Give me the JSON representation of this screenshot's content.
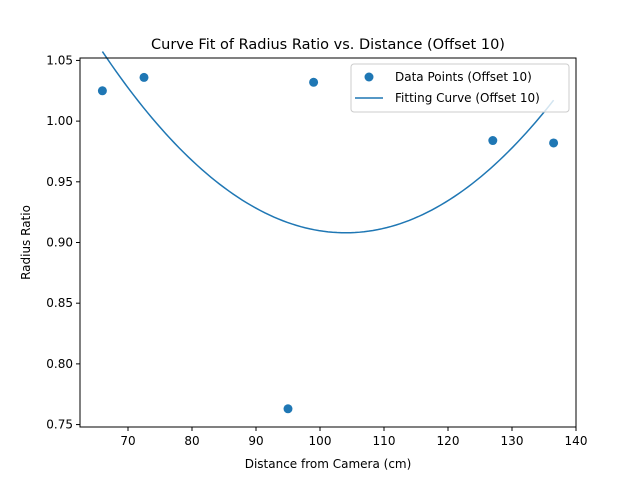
{
  "chart_data": {
    "type": "scatter",
    "title": "Curve Fit of Radius Ratio vs. Distance (Offset 10)",
    "xlabel": "Distance from Camera (cm)",
    "ylabel": "Radius Ratio",
    "xlim": [
      62.5,
      140
    ],
    "ylim": [
      0.748,
      1.052
    ],
    "xticks": [
      70,
      80,
      90,
      100,
      110,
      120,
      130,
      140
    ],
    "yticks": [
      0.75,
      0.8,
      0.85,
      0.9,
      0.95,
      1.0,
      1.05
    ],
    "xtick_labels": [
      "70",
      "80",
      "90",
      "100",
      "110",
      "120",
      "130",
      "140"
    ],
    "ytick_labels": [
      "0.75",
      "0.80",
      "0.85",
      "0.90",
      "0.95",
      "1.00",
      "1.05"
    ],
    "grid": false,
    "legend_position": "top-right",
    "series": [
      {
        "name": "Data Points (Offset 10)",
        "kind": "points",
        "color": "#1f77b4",
        "x": [
          66,
          72.5,
          95,
          99,
          127,
          136.5
        ],
        "y": [
          1.025,
          1.036,
          0.763,
          1.032,
          0.984,
          0.982
        ]
      },
      {
        "name": "Fitting Curve (Offset 10)",
        "kind": "line",
        "color": "#1f77b4",
        "fit": {
          "form": "a*(x-h)^2 + k",
          "a": 0.0001034,
          "h": 104,
          "k": 0.908,
          "x_range": [
            66,
            136.5
          ]
        }
      }
    ]
  }
}
